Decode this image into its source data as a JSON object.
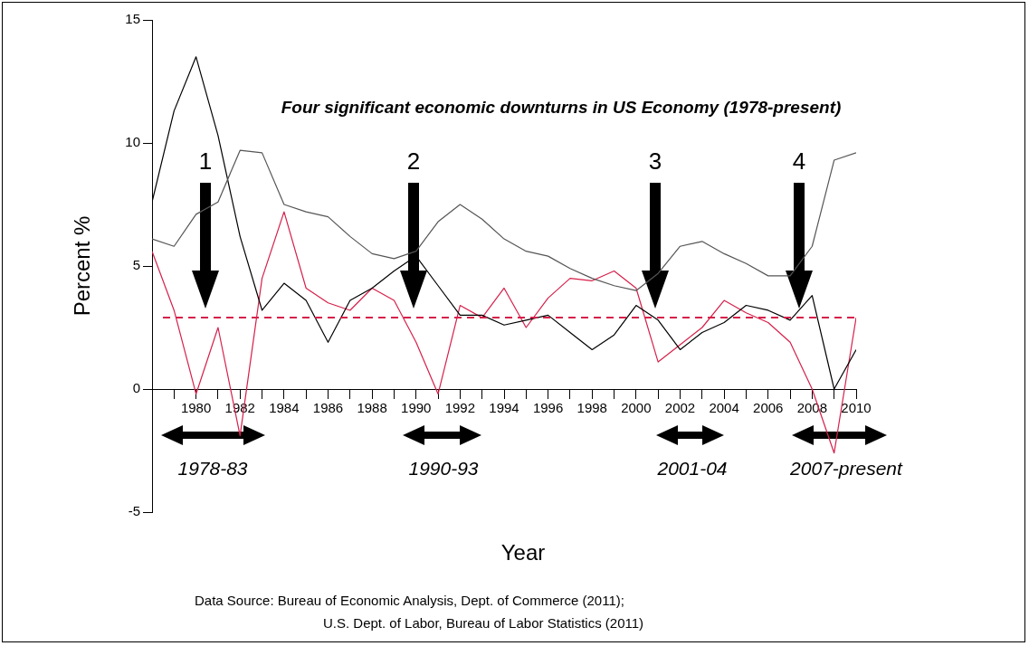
{
  "chart_data": {
    "type": "line",
    "title": "Four significant economic downturns in US Economy (1978-present)",
    "xlabel": "Year",
    "ylabel": "Percent %",
    "x": [
      1978,
      1979,
      1980,
      1981,
      1982,
      1983,
      1984,
      1985,
      1986,
      1987,
      1988,
      1989,
      1990,
      1991,
      1992,
      1993,
      1994,
      1995,
      1996,
      1997,
      1998,
      1999,
      2000,
      2001,
      2002,
      2003,
      2004,
      2005,
      2006,
      2007,
      2008,
      2009,
      2010
    ],
    "series": [
      {
        "color": "#555555",
        "values": [
          6.1,
          5.8,
          7.1,
          7.6,
          9.7,
          9.6,
          7.5,
          7.2,
          7.0,
          6.2,
          5.5,
          5.3,
          5.6,
          6.8,
          7.5,
          6.9,
          6.1,
          5.6,
          5.4,
          4.9,
          4.5,
          4.2,
          4.0,
          4.7,
          5.8,
          6.0,
          5.5,
          5.1,
          4.6,
          4.6,
          5.8,
          9.3,
          9.6
        ]
      },
      {
        "color": "#000000",
        "values": [
          7.6,
          11.3,
          13.5,
          10.3,
          6.2,
          3.2,
          4.3,
          3.6,
          1.9,
          3.6,
          4.1,
          4.8,
          5.4,
          4.2,
          3.0,
          3.0,
          2.6,
          2.8,
          3.0,
          2.3,
          1.6,
          2.2,
          3.4,
          2.8,
          1.6,
          2.3,
          2.7,
          3.4,
          3.2,
          2.8,
          3.8,
          0.0,
          1.6
        ]
      },
      {
        "color": "#d6204a",
        "values": [
          5.6,
          3.2,
          -0.2,
          2.5,
          -1.9,
          4.5,
          7.2,
          4.1,
          3.5,
          3.2,
          4.1,
          3.6,
          1.9,
          -0.2,
          3.4,
          2.9,
          4.1,
          2.5,
          3.7,
          4.5,
          4.4,
          4.8,
          4.1,
          1.1,
          1.8,
          2.5,
          3.6,
          3.1,
          2.7,
          1.9,
          0.0,
          -2.6,
          2.9
        ]
      }
    ],
    "xlim": [
      1978,
      2010
    ],
    "xticks": [
      {
        "value": 1979,
        "label": null
      },
      1980,
      {
        "value": 1981,
        "label": null
      },
      1982,
      {
        "value": 1983,
        "label": null
      },
      1984,
      {
        "value": 1985,
        "label": null
      },
      1986,
      {
        "value": 1987,
        "label": null
      },
      1988,
      {
        "value": 1989,
        "label": null
      },
      1990,
      {
        "value": 1991,
        "label": null
      },
      1992,
      {
        "value": 1993,
        "label": null
      },
      1994,
      {
        "value": 1995,
        "label": null
      },
      1996,
      {
        "value": 1997,
        "label": null
      },
      1998,
      {
        "value": 1999,
        "label": null
      },
      2000,
      {
        "value": 2001,
        "label": null
      },
      2002,
      {
        "value": 2003,
        "label": null
      },
      2004,
      {
        "value": 2005,
        "label": null
      },
      2006,
      {
        "value": 2007,
        "label": null
      },
      2008,
      {
        "value": 2009,
        "label": null
      },
      2010
    ],
    "ylim": [
      -5,
      15
    ],
    "yticks": [
      -5,
      0,
      5,
      10,
      15
    ],
    "ref_lines": [
      {
        "axis": "y",
        "value": 2.9,
        "color": "#d6204a",
        "line_style": "dashed"
      }
    ],
    "annotations": [
      "1",
      "2",
      "3",
      "4",
      "1978-83",
      "1990-93",
      "2001-04",
      "2007-present",
      "Data Source: Bureau of Economic Analysis, Dept. of Commerce (2011);",
      "U.S. Dept. of Labor, Bureau of Labor Statistics (2011)"
    ],
    "grid": false,
    "legend": false,
    "marker": "none",
    "line_style": "solid"
  }
}
